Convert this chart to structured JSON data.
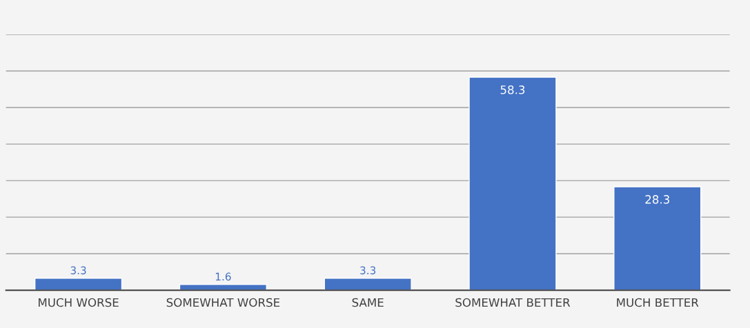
{
  "chart_data": {
    "type": "bar",
    "categories": [
      "MUCH WORSE",
      "SOMEWHAT WORSE",
      "SAME",
      "SOMEWHAT BETTER",
      "MUCH BETTER"
    ],
    "values": [
      3.3,
      1.6,
      3.3,
      58.3,
      28.3
    ],
    "color": "#4472c4",
    "data_labels": true,
    "ylim": [
      0,
      70
    ],
    "yticks": [
      {
        "value": 0,
        "label": null
      },
      {
        "value": 10,
        "label": null
      },
      {
        "value": 20,
        "label": null
      },
      {
        "value": 30,
        "label": null
      },
      {
        "value": 40,
        "label": null
      },
      {
        "value": 50,
        "label": null
      },
      {
        "value": 60,
        "label": null
      },
      {
        "value": 70,
        "label": null
      }
    ],
    "tick_labels": "x",
    "grid": "y"
  }
}
